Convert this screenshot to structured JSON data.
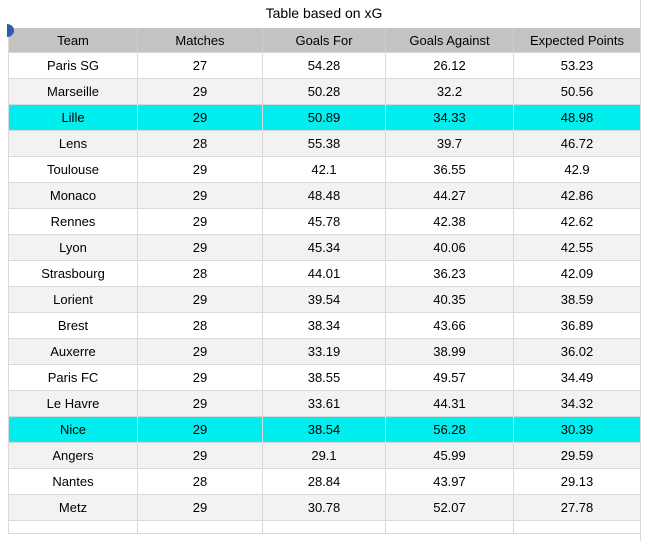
{
  "title": "Table based on xG",
  "icons": {
    "corner_marker": "blue-flag-marker"
  },
  "colors": {
    "highlight": "#00EEEE",
    "header_bg": "#C3C3C3",
    "zebra_row": "#F2F2F2",
    "gridline": "#D9D9D9",
    "marker": "#2F5BB7",
    "text": "#000000"
  },
  "chart_data": {
    "type": "table",
    "title": "Table based on xG",
    "columns": [
      "Team",
      "Matches",
      "Goals For",
      "Goals Against",
      "Expected Points"
    ],
    "rows": [
      [
        "Paris SG",
        "27",
        "54.28",
        "26.12",
        "53.23"
      ],
      [
        "Marseille",
        "29",
        "50.28",
        "32.2",
        "50.56"
      ],
      [
        "Lille",
        "29",
        "50.89",
        "34.33",
        "48.98"
      ],
      [
        "Lens",
        "28",
        "55.38",
        "39.7",
        "46.72"
      ],
      [
        "Toulouse",
        "29",
        "42.1",
        "36.55",
        "42.9"
      ],
      [
        "Monaco",
        "29",
        "48.48",
        "44.27",
        "42.86"
      ],
      [
        "Rennes",
        "29",
        "45.78",
        "42.38",
        "42.62"
      ],
      [
        "Lyon",
        "29",
        "45.34",
        "40.06",
        "42.55"
      ],
      [
        "Strasbourg",
        "28",
        "44.01",
        "36.23",
        "42.09"
      ],
      [
        "Lorient",
        "29",
        "39.54",
        "40.35",
        "38.59"
      ],
      [
        "Brest",
        "28",
        "38.34",
        "43.66",
        "36.89"
      ],
      [
        "Auxerre",
        "29",
        "33.19",
        "38.99",
        "36.02"
      ],
      [
        "Paris FC",
        "29",
        "38.55",
        "49.57",
        "34.49"
      ],
      [
        "Le Havre",
        "29",
        "33.61",
        "44.31",
        "34.32"
      ],
      [
        "Nice",
        "29",
        "38.54",
        "56.28",
        "30.39"
      ],
      [
        "Angers",
        "29",
        "29.1",
        "45.99",
        "29.59"
      ],
      [
        "Nantes",
        "28",
        "28.84",
        "43.97",
        "29.13"
      ],
      [
        "Metz",
        "29",
        "30.78",
        "52.07",
        "27.78"
      ]
    ],
    "highlighted_row_indices": [
      2,
      14
    ],
    "highlighted_teams": [
      "Lille",
      "Nice"
    ]
  }
}
